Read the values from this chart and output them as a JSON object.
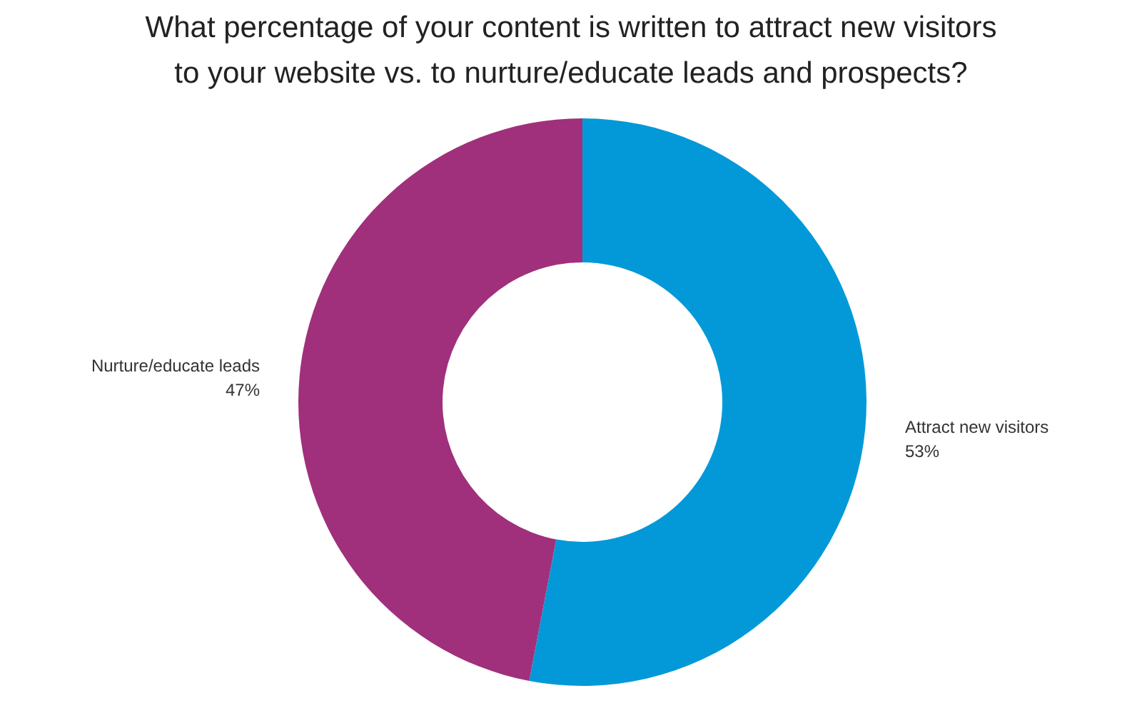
{
  "chart_data": {
    "type": "donut",
    "title": "What percentage of your content is written to attract new visitors\nto your website vs. to nurture/educate leads and prospects?",
    "categories": [
      "Attract new visitors",
      "Nurture/educate leads"
    ],
    "values": [
      53,
      47
    ],
    "colors": [
      "#0399d8",
      "#a0307b"
    ],
    "value_labels": [
      "53%",
      "47%"
    ]
  }
}
